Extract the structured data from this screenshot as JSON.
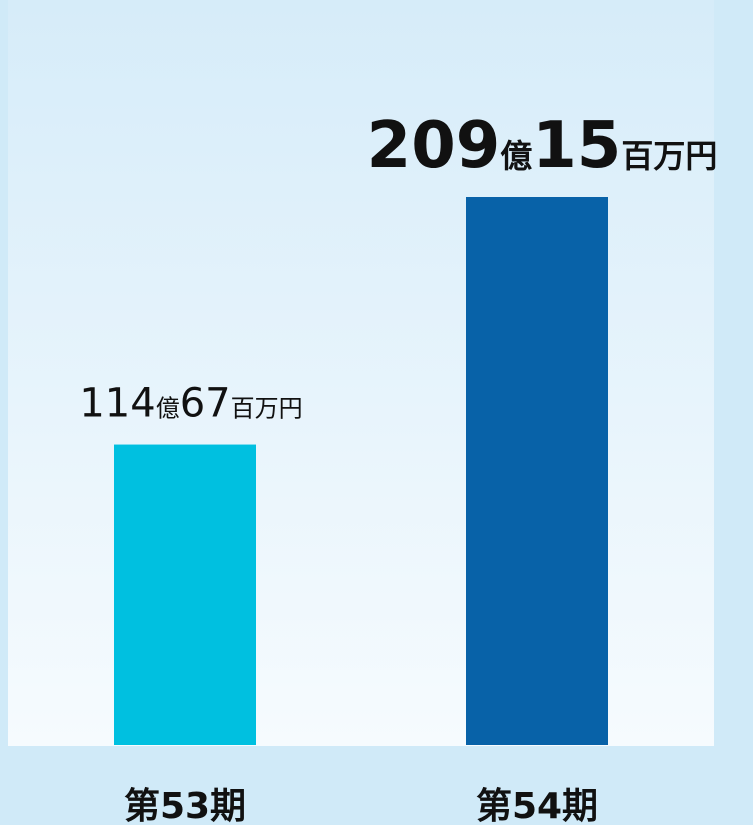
{
  "chart_data": {
    "type": "bar",
    "categories": [
      "第53期",
      "第54期"
    ],
    "values": [
      11467,
      20915
    ],
    "value_labels": [
      "114億67百万円",
      "209億15百万円"
    ],
    "colors": [
      "#00c0e0",
      "#0862a8"
    ]
  }
}
